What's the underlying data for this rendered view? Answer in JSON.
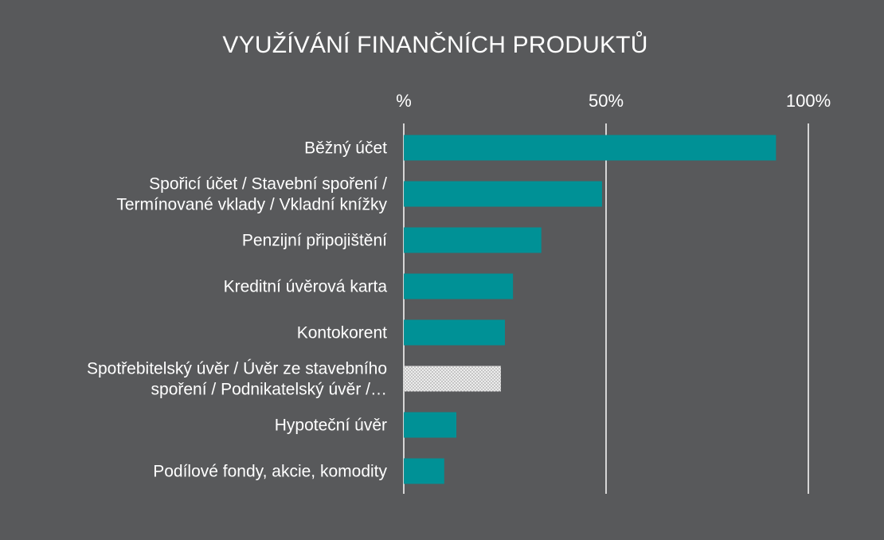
{
  "chart_data": {
    "type": "bar",
    "orientation": "horizontal",
    "title": "VYUŽÍVÁNÍ FINANČNÍCH PRODUKTŮ",
    "xlabel": "",
    "ylabel": "",
    "xlim": [
      0,
      100
    ],
    "ticks": [
      {
        "value": 0,
        "label": "%"
      },
      {
        "value": 50,
        "label": "50%"
      },
      {
        "value": 100,
        "label": "100%"
      }
    ],
    "grid": true,
    "colors": {
      "background": "#58595b",
      "bar": "#009196",
      "grid": "#ffffff",
      "text": "#ffffff",
      "highlight": "#e9e9e9"
    },
    "categories": [
      {
        "lines": [
          "Běžný účet"
        ],
        "value": 92,
        "pattern": "solid"
      },
      {
        "lines": [
          "Spořicí účet / Stavební spoření /",
          "Termínované vklady / Vkladní knížky"
        ],
        "value": 49,
        "pattern": "solid"
      },
      {
        "lines": [
          "Penzijní připojištění"
        ],
        "value": 34,
        "pattern": "solid"
      },
      {
        "lines": [
          "Kreditní úvěrová karta"
        ],
        "value": 27,
        "pattern": "solid"
      },
      {
        "lines": [
          "Kontokorent"
        ],
        "value": 25,
        "pattern": "solid"
      },
      {
        "lines": [
          "Spotřebitelský úvěr / Úvěr ze stavebního",
          "spoření / Podnikatelský úvěr /…"
        ],
        "value": 24,
        "pattern": "dotted"
      },
      {
        "lines": [
          "Hypoteční úvěr"
        ],
        "value": 13,
        "pattern": "solid"
      },
      {
        "lines": [
          "Podílové fondy, akcie, komodity"
        ],
        "value": 10,
        "pattern": "solid"
      }
    ]
  }
}
